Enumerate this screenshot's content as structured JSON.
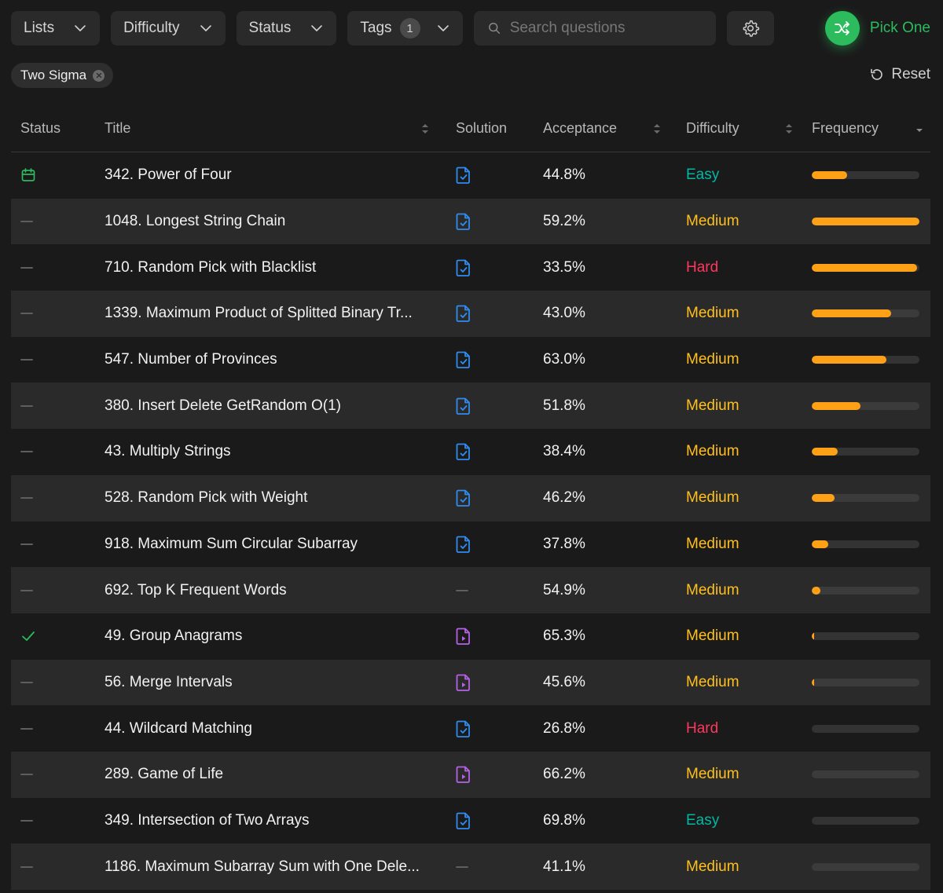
{
  "toolbar": {
    "filters": [
      {
        "label": "Lists"
      },
      {
        "label": "Difficulty"
      },
      {
        "label": "Status"
      },
      {
        "label": "Tags",
        "badge": "1"
      }
    ],
    "search_placeholder": "Search questions",
    "search_value": "",
    "settings_icon": "gear-icon",
    "pick_one_label": "Pick One",
    "pick_one_icon": "shuffle-icon"
  },
  "active_filters": [
    {
      "label": "Two Sigma"
    }
  ],
  "reset_label": "Reset",
  "colors": {
    "accent_green": "#2cbb5d",
    "easy": "#00b8a3",
    "medium": "#ffc01e",
    "hard": "#ff375f",
    "frequency_bar": "#ffa116",
    "solution_article": "#2f8cf0",
    "solution_video": "#b561e8"
  },
  "table": {
    "columns": {
      "status": "Status",
      "title": "Title",
      "solution": "Solution",
      "acceptance": "Acceptance",
      "difficulty": "Difficulty",
      "frequency": "Frequency"
    },
    "rows": [
      {
        "status": "scheduled",
        "title": "342. Power of Four",
        "solution": "article",
        "acceptance": "44.8%",
        "difficulty": "Easy",
        "frequency": 0.33
      },
      {
        "status": "none",
        "title": "1048. Longest String Chain",
        "solution": "article",
        "acceptance": "59.2%",
        "difficulty": "Medium",
        "frequency": 1.0
      },
      {
        "status": "none",
        "title": "710. Random Pick with Blacklist",
        "solution": "article",
        "acceptance": "33.5%",
        "difficulty": "Hard",
        "frequency": 0.98
      },
      {
        "status": "none",
        "title": "1339. Maximum Product of Splitted Binary Tr...",
        "solution": "article",
        "acceptance": "43.0%",
        "difficulty": "Medium",
        "frequency": 0.74
      },
      {
        "status": "none",
        "title": "547. Number of Provinces",
        "solution": "article",
        "acceptance": "63.0%",
        "difficulty": "Medium",
        "frequency": 0.69
      },
      {
        "status": "none",
        "title": "380. Insert Delete GetRandom O(1)",
        "solution": "article",
        "acceptance": "51.8%",
        "difficulty": "Medium",
        "frequency": 0.45
      },
      {
        "status": "none",
        "title": "43. Multiply Strings",
        "solution": "article",
        "acceptance": "38.4%",
        "difficulty": "Medium",
        "frequency": 0.24
      },
      {
        "status": "none",
        "title": "528. Random Pick with Weight",
        "solution": "article",
        "acceptance": "46.2%",
        "difficulty": "Medium",
        "frequency": 0.21
      },
      {
        "status": "none",
        "title": "918. Maximum Sum Circular Subarray",
        "solution": "article",
        "acceptance": "37.8%",
        "difficulty": "Medium",
        "frequency": 0.15
      },
      {
        "status": "none",
        "title": "692. Top K Frequent Words",
        "solution": "none",
        "acceptance": "54.9%",
        "difficulty": "Medium",
        "frequency": 0.08
      },
      {
        "status": "solved",
        "title": "49. Group Anagrams",
        "solution": "video",
        "acceptance": "65.3%",
        "difficulty": "Medium",
        "frequency": 0.02
      },
      {
        "status": "none",
        "title": "56. Merge Intervals",
        "solution": "video",
        "acceptance": "45.6%",
        "difficulty": "Medium",
        "frequency": 0.01
      },
      {
        "status": "none",
        "title": "44. Wildcard Matching",
        "solution": "article",
        "acceptance": "26.8%",
        "difficulty": "Hard",
        "frequency": 0.0
      },
      {
        "status": "none",
        "title": "289. Game of Life",
        "solution": "video",
        "acceptance": "66.2%",
        "difficulty": "Medium",
        "frequency": 0.0
      },
      {
        "status": "none",
        "title": "349. Intersection of Two Arrays",
        "solution": "article",
        "acceptance": "69.8%",
        "difficulty": "Easy",
        "frequency": 0.0
      },
      {
        "status": "none",
        "title": "1186. Maximum Subarray Sum with One Dele...",
        "solution": "none",
        "acceptance": "41.1%",
        "difficulty": "Medium",
        "frequency": 0.0
      }
    ]
  }
}
